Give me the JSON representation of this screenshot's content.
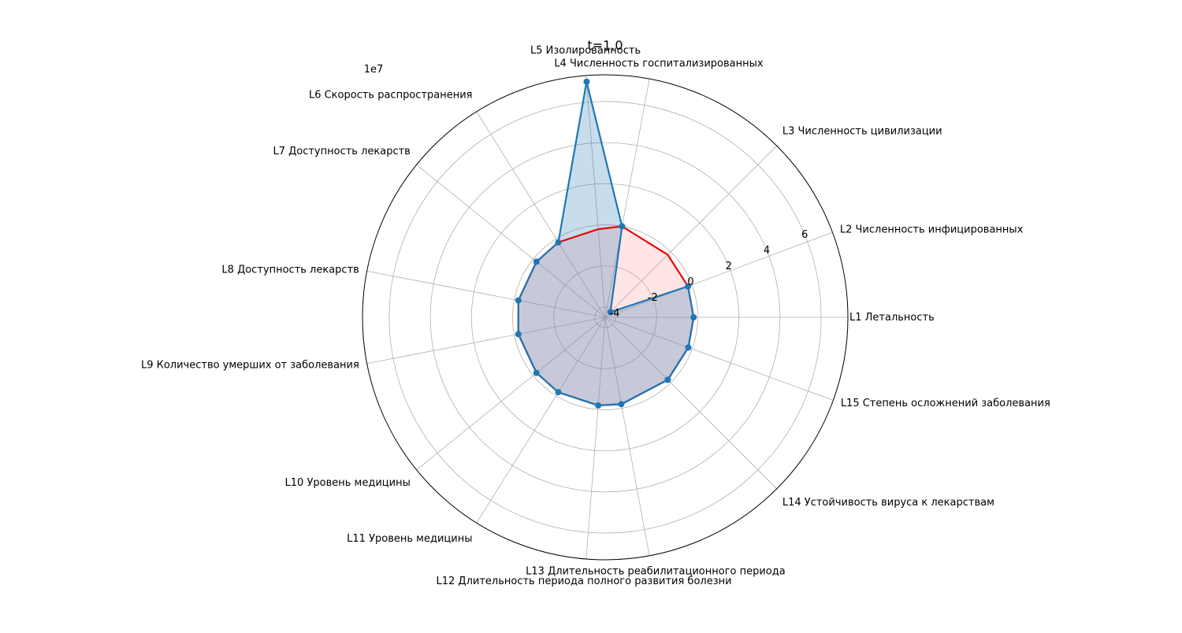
{
  "chart_data": {
    "type": "radar",
    "title": "t=1.0",
    "scale_offset_text": "1e7",
    "categories": [
      "L1 Летальность",
      "L2 Численность инфицированных",
      "L3 Численность цивилизации",
      "L4 Численность госпитализированных",
      "L5 Изолированность",
      "L6 Скорость распространения",
      "L7 Доступность лекарств",
      "L8 Доступность лекарств",
      "L9 Количество умерших от заболевания",
      "L10 Уровень медицины",
      "L11 Уровень медицины",
      "L12 Длительность периода полного развития болезни",
      "L13 Длительность реабилитационного периода",
      "L14 Устойчивость вируса к лекарствам",
      "L15 Степень осложнений заболевания"
    ],
    "radial_ticks": [
      -4,
      -2,
      0,
      2,
      4,
      6
    ],
    "radial_range": [
      -4.5,
      7.3
    ],
    "angles_deg": [
      0,
      20.5,
      45,
      79.5,
      94.5,
      122,
      141,
      169,
      191,
      219,
      238,
      265.5,
      280.5,
      315,
      340
    ],
    "series": [
      {
        "color": "#1f77b4",
        "fill": "#1f77b4",
        "fill_opacity": 0.25,
        "markers": true,
        "values": [
          -0.2,
          -0.2,
          -4.14,
          0.0,
          7.0,
          -0.2,
          -0.2,
          -0.2,
          -0.2,
          -0.2,
          -0.2,
          -0.2,
          -0.2,
          -0.2,
          -0.2
        ]
      },
      {
        "color": "#e8080a",
        "fill": "#ff9999",
        "fill_opacity": 0.25,
        "markers": false,
        "values": [
          -0.2,
          -0.2,
          -0.2,
          0.0,
          -0.2,
          -0.2,
          -0.2,
          -0.2,
          -0.2,
          -0.2,
          -0.2,
          -0.2,
          -0.2,
          -0.2,
          -0.2
        ]
      }
    ],
    "grid": true
  }
}
